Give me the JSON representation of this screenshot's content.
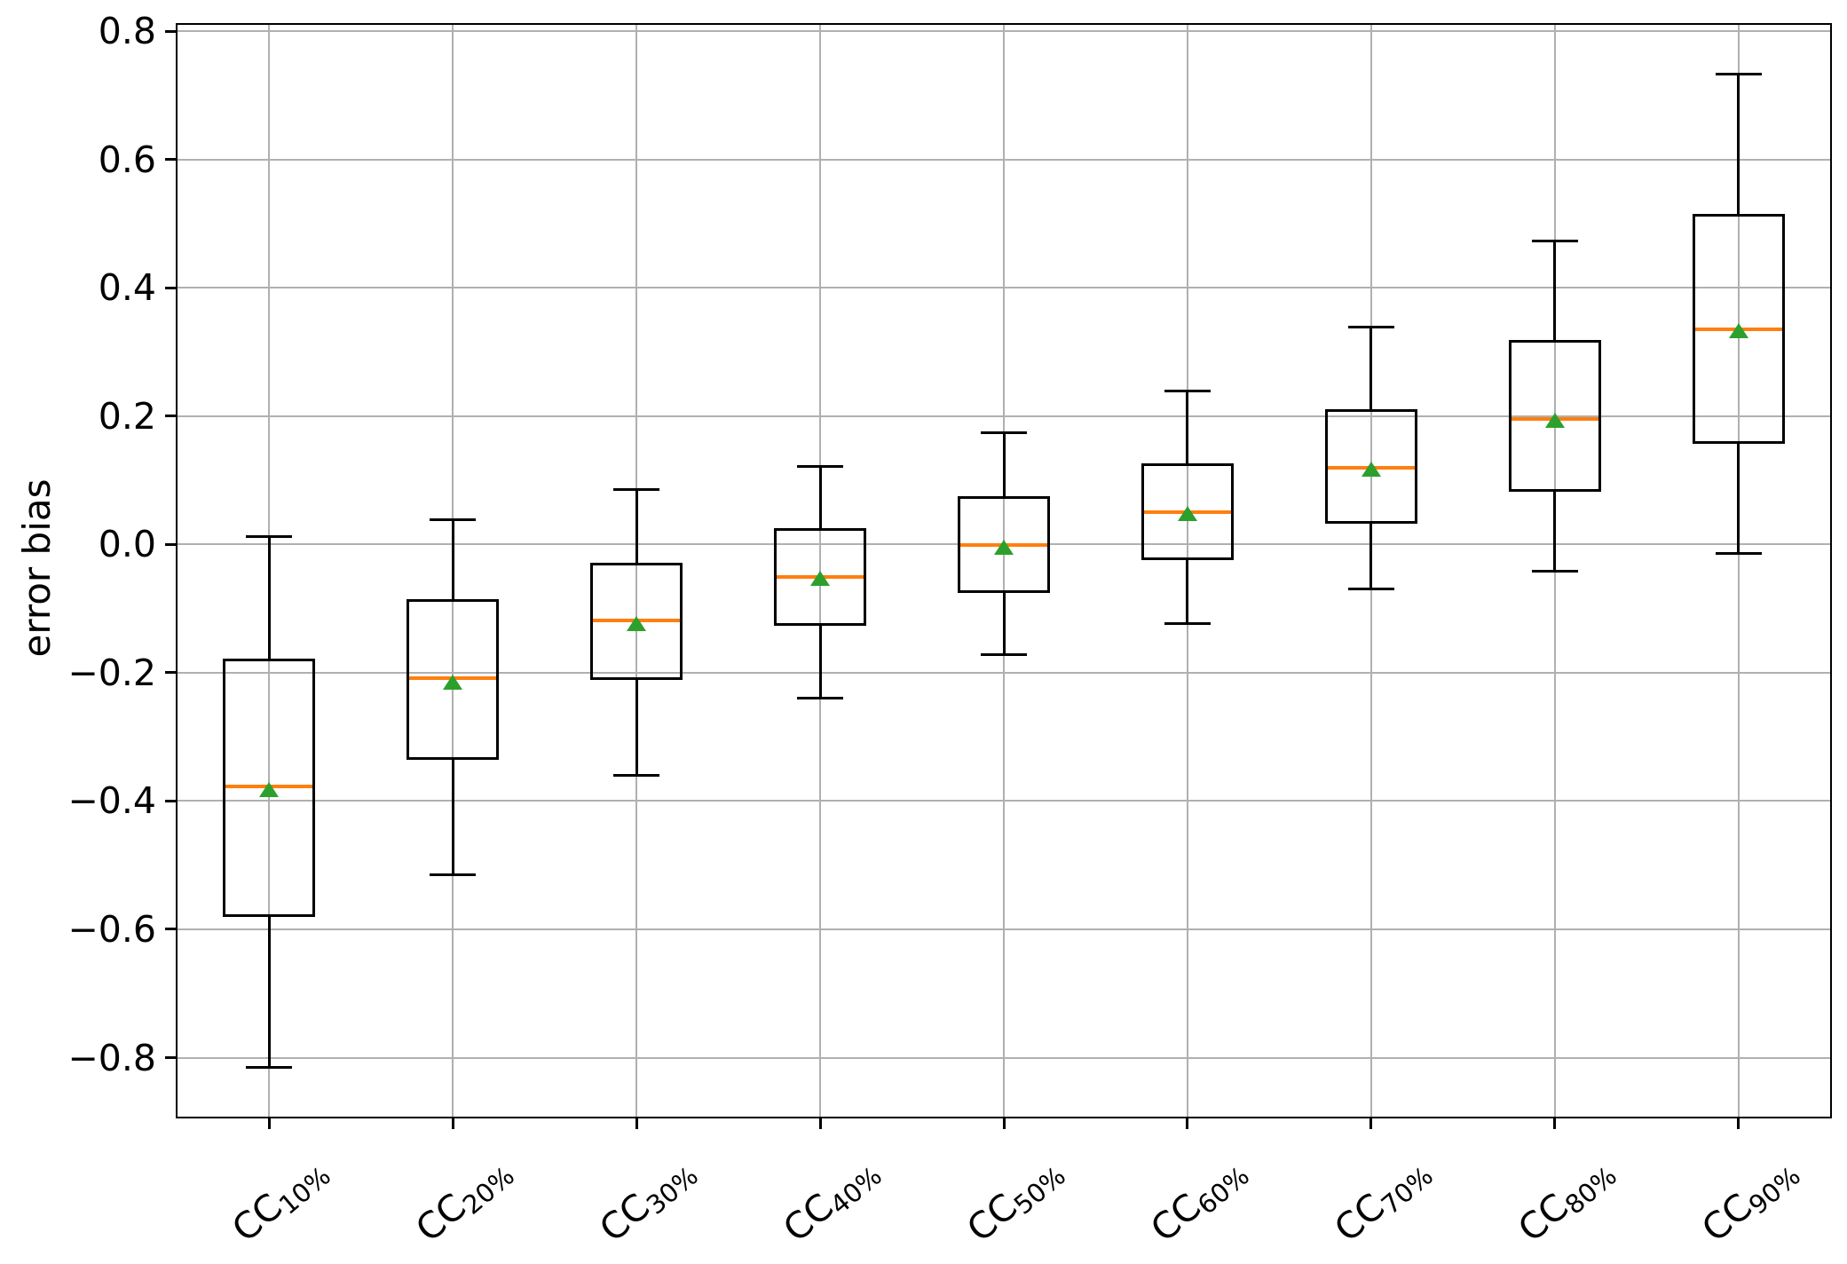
{
  "chart_data": {
    "type": "boxplot",
    "title": "",
    "xlabel": "",
    "ylabel": "error bias",
    "ylim": [
      -0.892,
      0.81
    ],
    "grid": true,
    "legend": null,
    "yticks": [
      {
        "value": 0.8,
        "label": "0.8"
      },
      {
        "value": 0.6,
        "label": "0.6"
      },
      {
        "value": 0.4,
        "label": "0.4"
      },
      {
        "value": 0.2,
        "label": "0.2"
      },
      {
        "value": 0.0,
        "label": "0.0"
      },
      {
        "value": -0.2,
        "label": "−0.2"
      },
      {
        "value": -0.4,
        "label": "−0.4"
      },
      {
        "value": -0.6,
        "label": "−0.6"
      },
      {
        "value": -0.8,
        "label": "−0.8"
      }
    ],
    "categories": [
      {
        "base": "CC",
        "sub": "10%"
      },
      {
        "base": "CC",
        "sub": "20%"
      },
      {
        "base": "CC",
        "sub": "30%"
      },
      {
        "base": "CC",
        "sub": "40%"
      },
      {
        "base": "CC",
        "sub": "50%"
      },
      {
        "base": "CC",
        "sub": "60%"
      },
      {
        "base": "CC",
        "sub": "70%"
      },
      {
        "base": "CC",
        "sub": "80%"
      },
      {
        "base": "CC",
        "sub": "90%"
      }
    ],
    "boxes": [
      {
        "label": "CC 10%",
        "whislo": -0.815,
        "q1": -0.578,
        "med": -0.377,
        "mean": -0.382,
        "q3": -0.18,
        "whishi": 0.012
      },
      {
        "label": "CC 20%",
        "whislo": -0.515,
        "q1": -0.333,
        "med": -0.209,
        "mean": -0.215,
        "q3": -0.087,
        "whishi": 0.038
      },
      {
        "label": "CC 30%",
        "whislo": -0.36,
        "q1": -0.209,
        "med": -0.119,
        "mean": -0.124,
        "q3": -0.03,
        "whishi": 0.085
      },
      {
        "label": "CC 40%",
        "whislo": -0.239,
        "q1": -0.125,
        "med": -0.05,
        "mean": -0.053,
        "q3": 0.024,
        "whishi": 0.122
      },
      {
        "label": "CC 50%",
        "whislo": -0.172,
        "q1": -0.073,
        "med": -0.001,
        "mean": -0.004,
        "q3": 0.073,
        "whishi": 0.174
      },
      {
        "label": "CC 60%",
        "whislo": -0.123,
        "q1": -0.023,
        "med": 0.051,
        "mean": 0.048,
        "q3": 0.124,
        "whishi": 0.239
      },
      {
        "label": "CC 70%",
        "whislo": -0.069,
        "q1": 0.035,
        "med": 0.12,
        "mean": 0.117,
        "q3": 0.209,
        "whishi": 0.339
      },
      {
        "label": "CC 80%",
        "whislo": -0.042,
        "q1": 0.084,
        "med": 0.195,
        "mean": 0.193,
        "q3": 0.317,
        "whishi": 0.473
      },
      {
        "label": "CC 90%",
        "whislo": -0.014,
        "q1": 0.159,
        "med": 0.336,
        "mean": 0.333,
        "q3": 0.513,
        "whishi": 0.733
      }
    ],
    "colors": {
      "line": "#000000",
      "median": "#ff7f0e",
      "mean_marker": "#2ca02c",
      "grid": "#b0b0b0",
      "background": "#ffffff"
    },
    "mean_marker_shape": "triangle-up"
  }
}
